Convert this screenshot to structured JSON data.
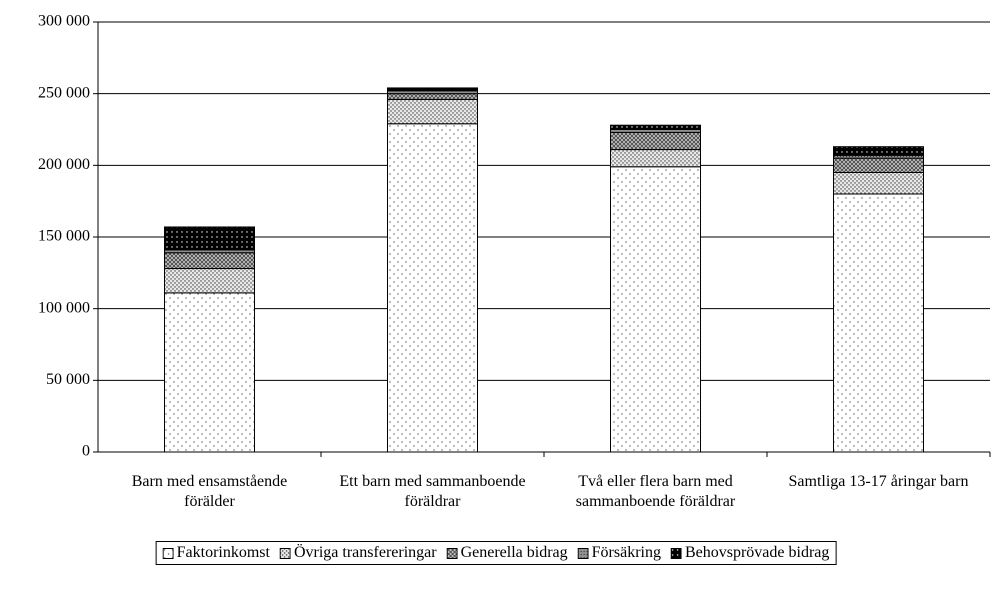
{
  "chart_data": {
    "type": "stacked_bar",
    "categories": [
      "Barn med ensamstående förälder",
      "Ett barn med sammanboende föräldrar",
      "Två eller flera barn med sammanboende föräldrar",
      "Samtliga 13-17 åringar barn"
    ],
    "series": [
      {
        "name": "Faktorinkomst",
        "color": "#ffffff",
        "values": [
          111000,
          229000,
          199000,
          180000
        ]
      },
      {
        "name": "Övriga transfereringar",
        "color": "#e8e8e8",
        "values": [
          17000,
          17000,
          12000,
          15000
        ]
      },
      {
        "name": "Generella bidrag",
        "color": "#c0c0c0",
        "values": [
          11000,
          4000,
          12000,
          10000
        ]
      },
      {
        "name": "Försäkring",
        "color": "#909090",
        "values": [
          2000,
          2000,
          2000,
          2000
        ]
      },
      {
        "name": "Behovsprövade bidrag",
        "color": "#000000",
        "values": [
          16000,
          2000,
          3000,
          6000
        ]
      }
    ],
    "ylim": [
      0,
      300000
    ],
    "yticks": [
      0,
      {
        "value": 50000,
        "label": "50 000"
      },
      {
        "value": 100000,
        "label": "100 000"
      },
      {
        "value": 150000,
        "label": "150 000"
      },
      {
        "value": 200000,
        "label": "200 000"
      },
      {
        "value": 250000,
        "label": "250 000"
      },
      {
        "value": 300000,
        "label": "300 000"
      }
    ],
    "grid": true,
    "legend": "bottom"
  }
}
